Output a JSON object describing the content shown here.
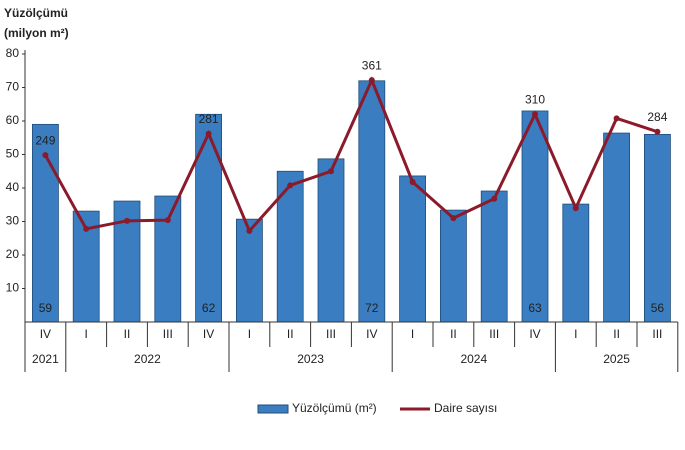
{
  "chart_data": {
    "type": "bar-line",
    "y_label_lines": [
      "Yüzölçümü",
      "(milyon m²)"
    ],
    "groups": [
      {
        "label": "2021",
        "categories": [
          "IV"
        ]
      },
      {
        "label": "2022",
        "categories": [
          "I",
          "II",
          "III",
          "IV"
        ]
      },
      {
        "label": "2023",
        "categories": [
          "I",
          "II",
          "III",
          "IV"
        ]
      },
      {
        "label": "2024",
        "categories": [
          "I",
          "II",
          "III",
          "IV"
        ]
      },
      {
        "label": "2025",
        "categories": [
          "I",
          "II",
          "III"
        ]
      }
    ],
    "series": [
      {
        "name": "Yüzölçümü (m²)",
        "type": "bar",
        "color": "#3a7dc0",
        "values": [
          59,
          33.1,
          36.1,
          37.6,
          62,
          30.7,
          45,
          48.7,
          72,
          43.6,
          33.4,
          39.1,
          63,
          35.2,
          56.4,
          56
        ],
        "value_labels": [
          "59",
          null,
          null,
          null,
          "62",
          null,
          null,
          null,
          "72",
          null,
          null,
          null,
          "63",
          null,
          null,
          "56"
        ]
      },
      {
        "name": "Daire sayısı",
        "type": "line",
        "axis": "y2",
        "color": "#8b1a2b",
        "values": [
          249,
          139,
          151,
          152,
          281,
          136,
          204,
          225,
          361,
          209,
          155,
          184,
          310,
          170,
          304,
          284
        ],
        "value_labels": [
          "249",
          null,
          null,
          null,
          "281",
          null,
          null,
          null,
          "361",
          null,
          null,
          null,
          "310",
          null,
          null,
          "284"
        ]
      }
    ],
    "ylim": [
      0,
      80
    ],
    "yticks": [
      10,
      20,
      30,
      40,
      50,
      60,
      70,
      80
    ],
    "y2lim": [
      0,
      400
    ]
  }
}
